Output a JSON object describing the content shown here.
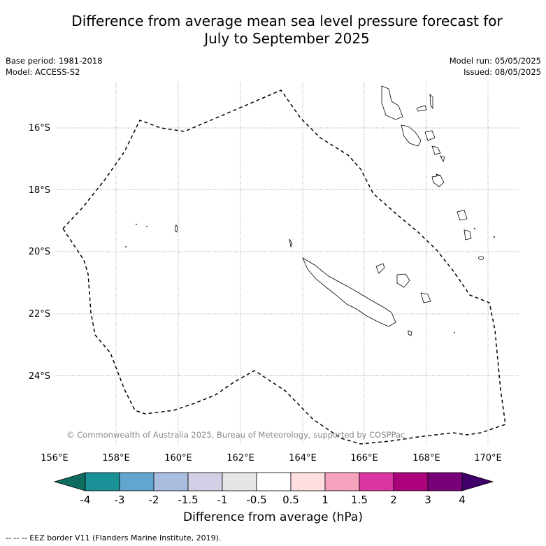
{
  "header": {
    "title_line1": "Difference from average mean sea level pressure forecast for",
    "title_line2": "July to September 2025",
    "base_period": "Base period: 1981-2018",
    "model": "Model: ACCESS-S2",
    "model_run": "Model run: 05/05/2025",
    "issued": "Issued: 08/05/2025"
  },
  "map": {
    "lon_labels": [
      "156°E",
      "158°E",
      "160°E",
      "162°E",
      "164°E",
      "166°E",
      "168°E",
      "170°E"
    ],
    "lat_labels": [
      "16°S",
      "18°S",
      "20°S",
      "22°S",
      "24°S"
    ],
    "copyright": "© Commonwealth of Australia 2025, Bureau of Meteorology, supported by COSPPac",
    "eez_color": "#000000",
    "land_color": "#ffffff"
  },
  "colorbar": {
    "ticks": [
      "-4",
      "-3",
      "-2",
      "-1.5",
      "-1",
      "-0.5",
      "0.5",
      "1",
      "1.5",
      "2",
      "3",
      "4"
    ],
    "colors": [
      "#0f6b5e",
      "#1a9097",
      "#62a6d0",
      "#a9bedf",
      "#d2d0e6",
      "#e6e6e6",
      "#ffffff",
      "#fedede",
      "#f7a2bd",
      "#db35a2",
      "#ac037d",
      "#780179",
      "#3f0069"
    ],
    "label": "Difference from average (hPa)"
  },
  "footnote": "--  --  -- EEZ border V11 (Flanders Marine Institute, 2019)."
}
